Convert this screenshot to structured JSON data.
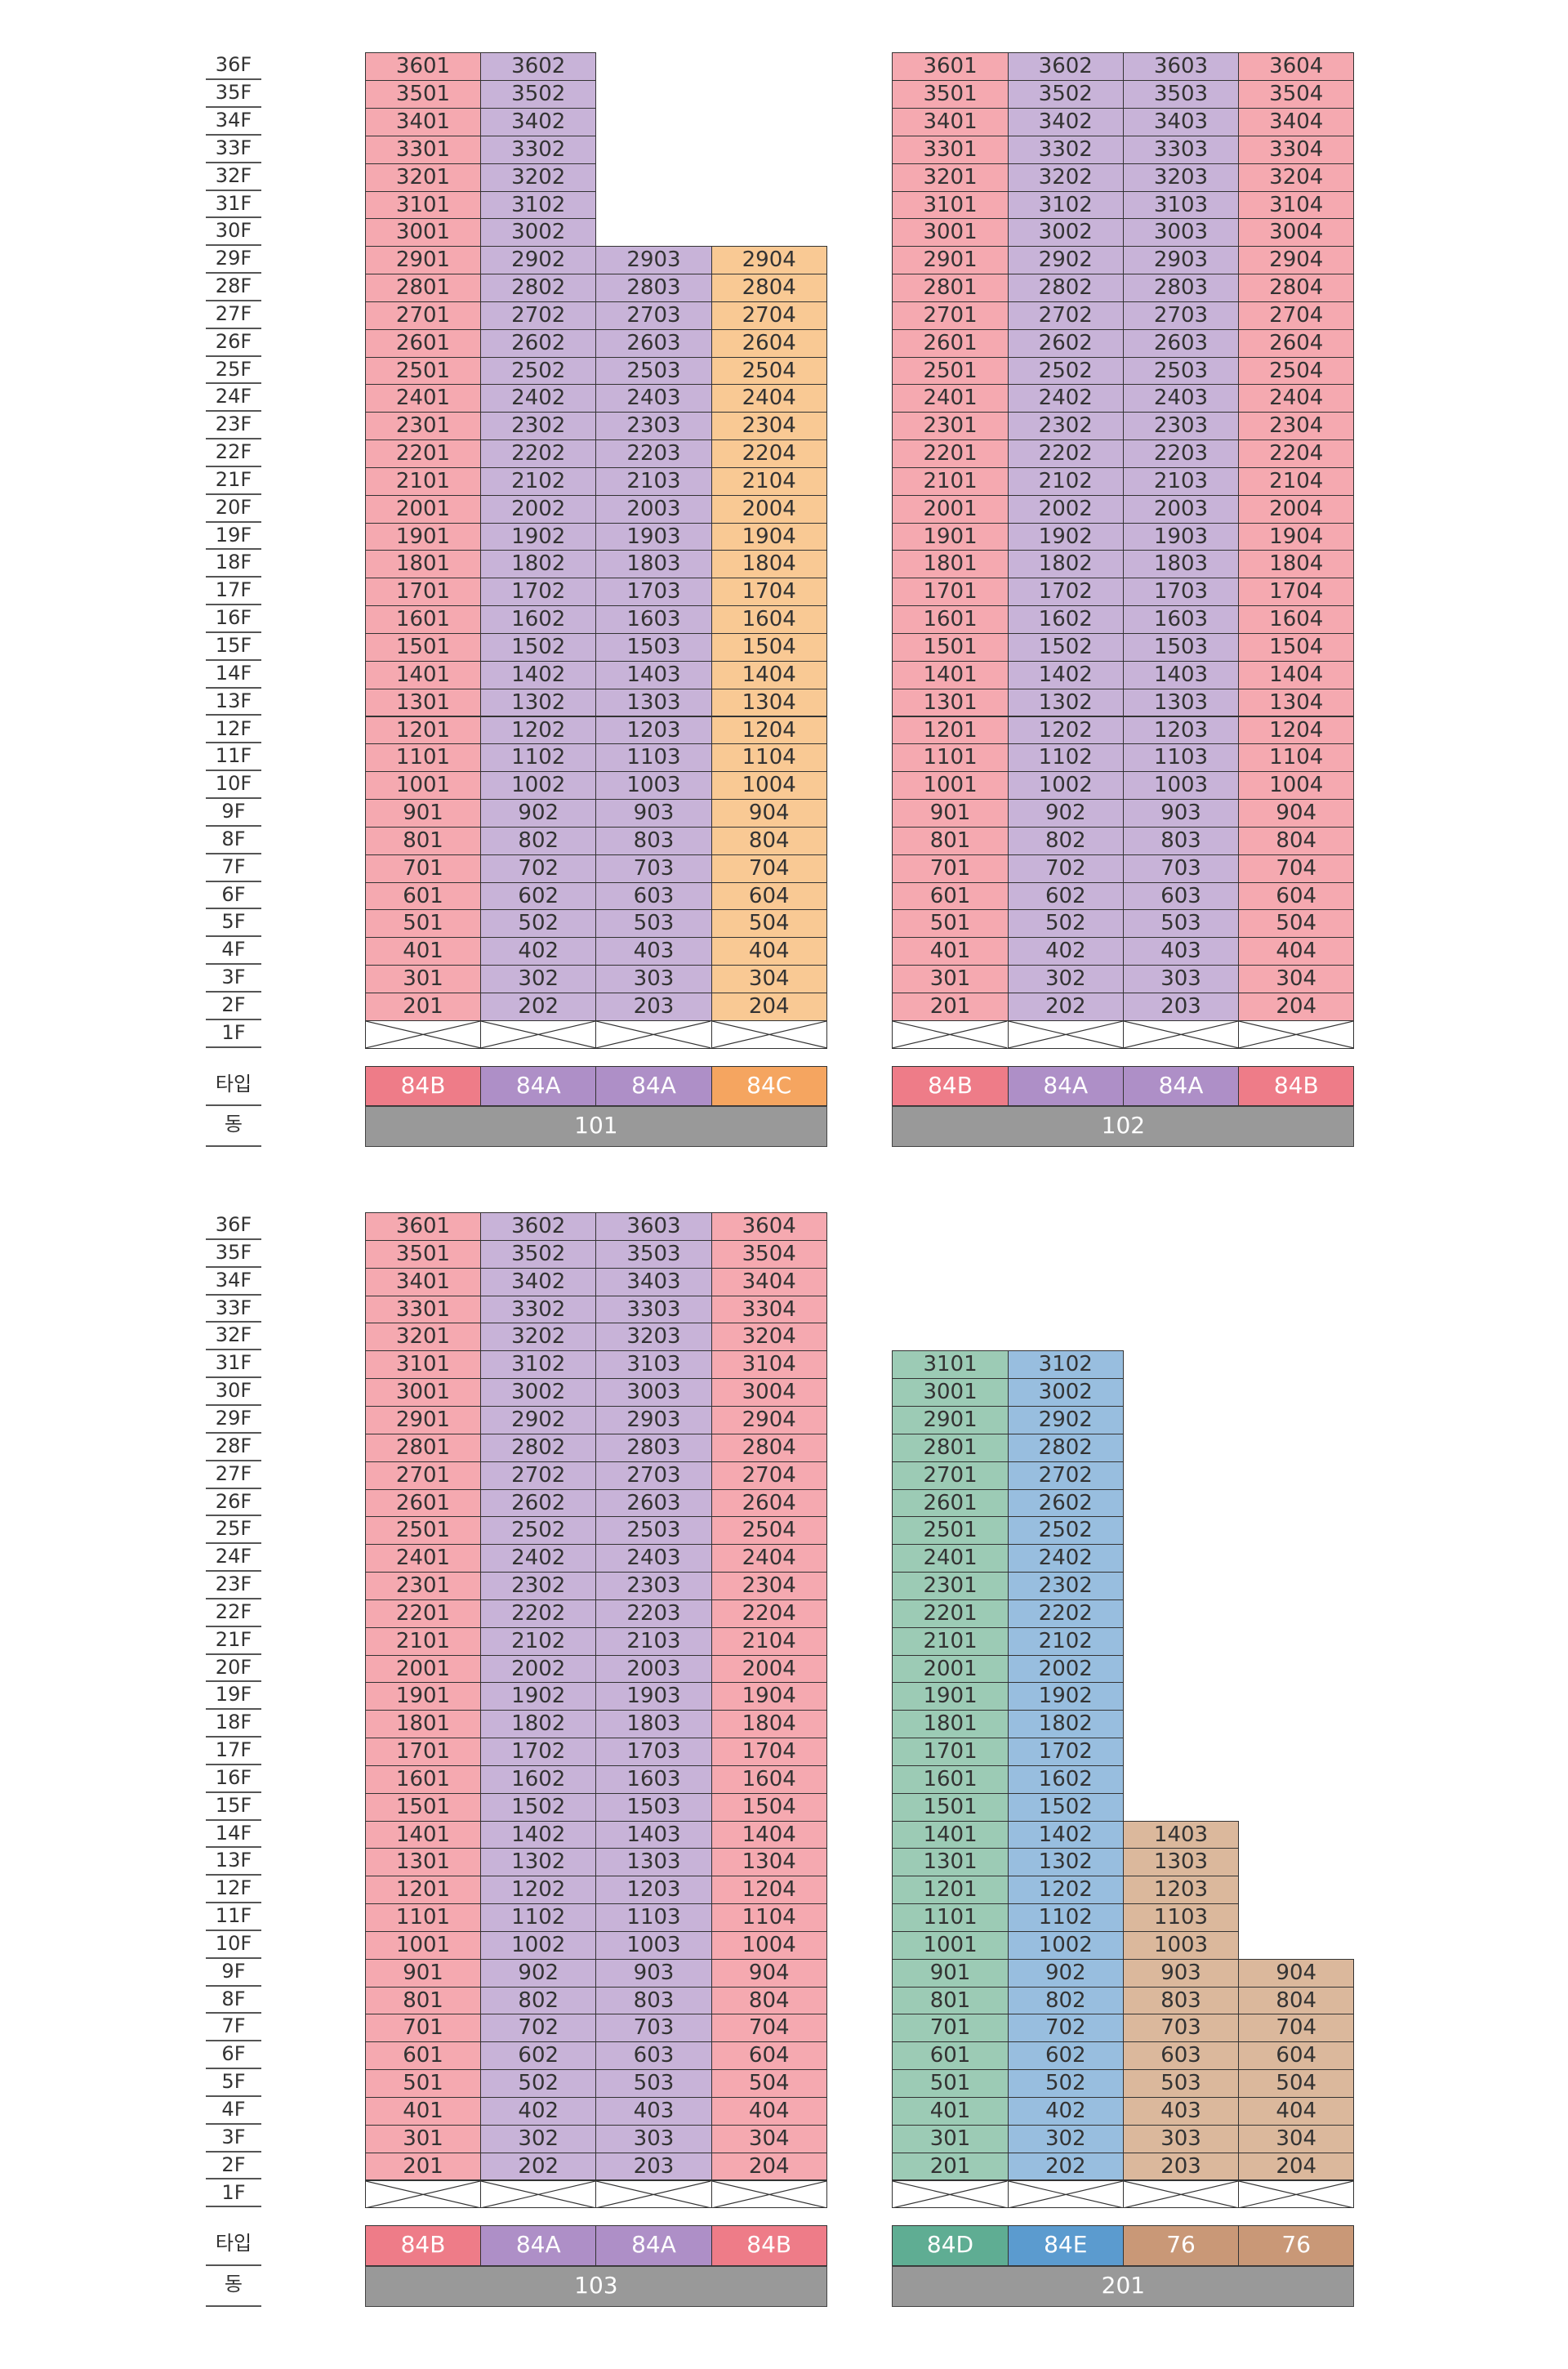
{
  "labels": {
    "type_label": "타입",
    "dong_label": "동"
  },
  "colors": {
    "84B": "#f5a9b0",
    "84A": "#c8b3d8",
    "84C": "#f9c994",
    "84D": "#9ccbb5",
    "84E": "#98bedf",
    "76": "#dbb89c"
  },
  "type_colors": {
    "84B": "#ee7c88",
    "84A": "#ae8fc7",
    "84C": "#f5a560",
    "84D": "#5fad93",
    "84E": "#5b9bcf",
    "76": "#c99877"
  },
  "buildings": [
    {
      "dong": "101",
      "floors_label": [
        "36F",
        "35F",
        "34F",
        "33F",
        "32F",
        "31F",
        "30F",
        "29F",
        "28F",
        "27F",
        "26F",
        "25F",
        "24F",
        "23F",
        "22F",
        "21F",
        "20F",
        "19F",
        "18F",
        "17F",
        "16F",
        "15F",
        "14F",
        "13F",
        "12F",
        "11F",
        "10F",
        "9F",
        "8F",
        "7F",
        "6F",
        "5F",
        "4F",
        "3F",
        "2F",
        "1F"
      ],
      "columns": [
        {
          "line": "01",
          "type": "84B",
          "top_floor": 36
        },
        {
          "line": "02",
          "type": "84A",
          "top_floor": 36
        },
        {
          "line": "03",
          "type": "84A",
          "top_floor": 29
        },
        {
          "line": "04",
          "type": "84C",
          "top_floor": 29
        }
      ]
    },
    {
      "dong": "102",
      "floors_label": [],
      "columns": [
        {
          "line": "01",
          "type": "84B",
          "top_floor": 36
        },
        {
          "line": "02",
          "type": "84A",
          "top_floor": 36
        },
        {
          "line": "03",
          "type": "84A",
          "top_floor": 36
        },
        {
          "line": "04",
          "type": "84B",
          "top_floor": 36
        }
      ]
    },
    {
      "dong": "103",
      "floors_label": [
        "36F",
        "35F",
        "34F",
        "33F",
        "32F",
        "31F",
        "30F",
        "29F",
        "28F",
        "27F",
        "26F",
        "25F",
        "24F",
        "23F",
        "22F",
        "21F",
        "20F",
        "19F",
        "18F",
        "17F",
        "16F",
        "15F",
        "14F",
        "13F",
        "12F",
        "11F",
        "10F",
        "9F",
        "8F",
        "7F",
        "6F",
        "5F",
        "4F",
        "3F",
        "2F",
        "1F"
      ],
      "columns": [
        {
          "line": "01",
          "type": "84B",
          "top_floor": 36
        },
        {
          "line": "02",
          "type": "84A",
          "top_floor": 36
        },
        {
          "line": "03",
          "type": "84A",
          "top_floor": 36
        },
        {
          "line": "04",
          "type": "84B",
          "top_floor": 36
        }
      ]
    },
    {
      "dong": "201",
      "floors_label": [],
      "columns": [
        {
          "line": "01",
          "type": "84D",
          "top_floor": 31
        },
        {
          "line": "02",
          "type": "84E",
          "top_floor": 31
        },
        {
          "line": "03",
          "type": "76",
          "top_floor": 14
        },
        {
          "line": "04",
          "type": "76",
          "top_floor": 9
        }
      ]
    }
  ]
}
